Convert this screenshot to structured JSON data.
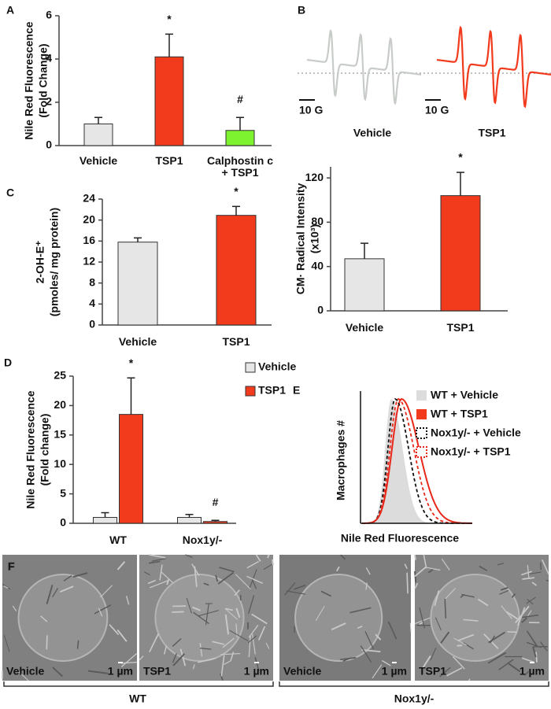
{
  "panel_labels": [
    "A",
    "B",
    "C",
    "D",
    "E",
    "F"
  ],
  "chart_data": [
    {
      "type": "bar",
      "ylabel": [
        "Nile Red Fluorescence",
        "(Fold Change)"
      ],
      "categories": [
        "Vehicle",
        "TSP1",
        "Calphostin c + TSP1"
      ],
      "values": [
        1.0,
        4.1,
        0.7
      ],
      "errors": [
        0.3,
        1.05,
        0.6
      ],
      "colors": [
        "#e6e6e6",
        "#f23a1c",
        "#7df22e"
      ],
      "ylim": [
        0,
        6
      ],
      "yticks": [
        0,
        2,
        4,
        6
      ],
      "annotations": [
        {
          "text": "*",
          "category": "TSP1"
        },
        {
          "text": "#",
          "category": "Calphostin c + TSP1"
        }
      ]
    },
    {
      "type": "bar",
      "ylabel": [
        "CM· Radical Intensity",
        "(x10³)"
      ],
      "categories": [
        "Vehicle",
        "TSP1"
      ],
      "values": [
        47,
        104
      ],
      "errors": [
        14,
        21
      ],
      "colors": [
        "#e6e6e6",
        "#f23a1c"
      ],
      "ylim": [
        0,
        130
      ],
      "yticks": [
        0,
        40,
        80,
        120
      ],
      "annotations": [
        {
          "text": "*",
          "category": "TSP1"
        }
      ]
    },
    {
      "type": "bar",
      "ylabel": [
        "2-OH-E⁺",
        "(pmoles/ mg protein)"
      ],
      "categories": [
        "Vehicle",
        "TSP1"
      ],
      "values": [
        15.8,
        20.9
      ],
      "errors": [
        0.8,
        1.7
      ],
      "colors": [
        "#e6e6e6",
        "#f23a1c"
      ],
      "ylim": [
        0,
        24
      ],
      "yticks": [
        0,
        4,
        8,
        12,
        16,
        20,
        24
      ],
      "annotations": [
        {
          "text": "*",
          "category": "TSP1"
        }
      ]
    },
    {
      "type": "grouped_bar",
      "ylabel": [
        "Nile Red Fluorescence",
        "(Fold change)"
      ],
      "categories": [
        "WT",
        "Nox1y/-"
      ],
      "series": [
        {
          "name": "Vehicle",
          "color": "#e6e6e6",
          "values": [
            1.0,
            1.0
          ],
          "errors": [
            0.8,
            0.5
          ]
        },
        {
          "name": "TSP1",
          "color": "#f23a1c",
          "values": [
            18.5,
            0.3
          ],
          "errors": [
            6.2,
            0.2
          ]
        }
      ],
      "ylim": [
        0,
        25
      ],
      "yticks": [
        0,
        5,
        10,
        15,
        20,
        25
      ],
      "annotations": [
        {
          "text": "*",
          "category": "WT",
          "series": "TSP1"
        },
        {
          "text": "#",
          "category": "Nox1y/-",
          "series": "TSP1"
        }
      ]
    }
  ],
  "epr_spectra": {
    "scale_label": "10 G",
    "labels": [
      "Vehicle",
      "TSP1"
    ]
  },
  "flow_histogram": {
    "xlabel": "Nile Red Fluorescence",
    "ylabel": "Macrophages #",
    "legend": [
      "WT + Vehicle",
      "WT + TSP1",
      "Nox1y/- + Vehicle",
      "Nox1y/- + TSP1"
    ]
  },
  "sem_images": {
    "panels": [
      {
        "label": "Vehicle",
        "scale": "1 µm"
      },
      {
        "label": "TSP1",
        "scale": "1 µm"
      },
      {
        "label": "Vehicle",
        "scale": "1 µm"
      },
      {
        "label": "TSP1",
        "scale": "1 µm"
      }
    ],
    "groups": [
      "WT",
      "Nox1y/-"
    ]
  }
}
